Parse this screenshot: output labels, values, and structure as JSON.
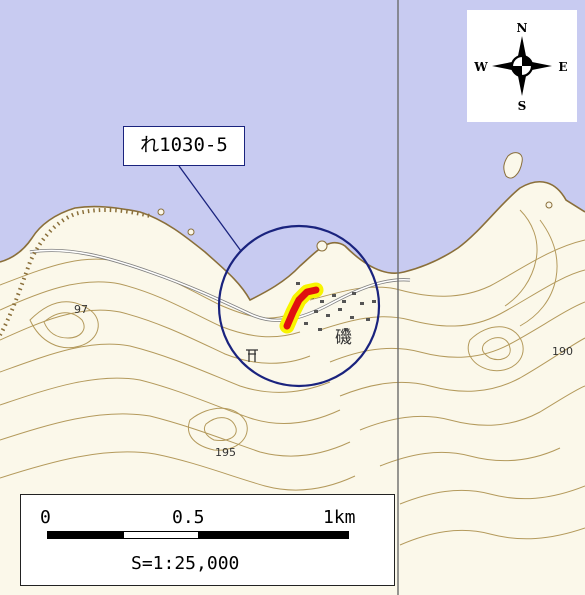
{
  "map": {
    "callout_label": "れ1030-5",
    "compass": {
      "north": "N",
      "south": "S",
      "east": "E",
      "west": "W"
    },
    "scale": {
      "tick_0": "0",
      "tick_mid": "0.5",
      "tick_end": "1km",
      "ratio": "S=1:25,000"
    },
    "elevation_labels": {
      "a": "97",
      "b": "195",
      "c": "190"
    },
    "place_label": "磯",
    "colors": {
      "sea": "#c8cbf1",
      "land": "#fbf8ea",
      "contour": "#b49a5c",
      "highlight_fill": "#e01010",
      "highlight_buffer": "#f8f400",
      "circle": "#1a237e",
      "grid_line": "#6b6b6b"
    }
  }
}
